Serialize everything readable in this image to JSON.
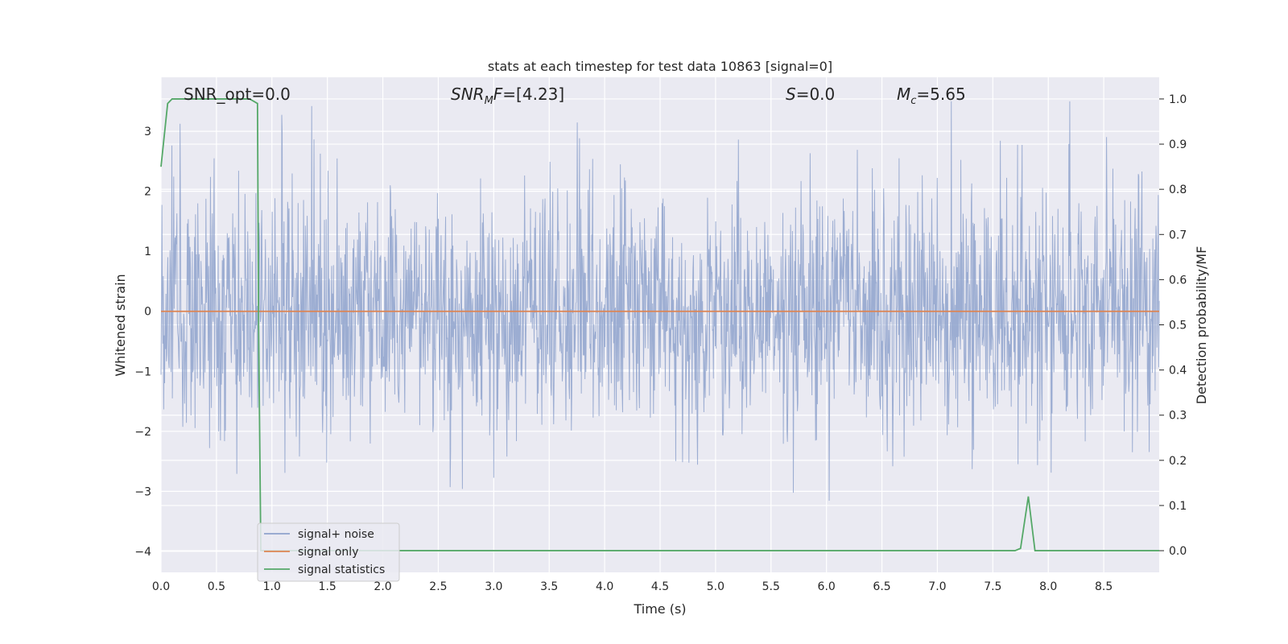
{
  "chart_data": {
    "type": "line",
    "title": "stats at each timestep for test data 10863 [signal=0]",
    "xlabel": "Time (s)",
    "ylabel": "Whitened strain",
    "ylabel_right": "Detection probability/MF",
    "xlim": [
      0.0,
      9.0
    ],
    "ylim": [
      -4.35,
      3.9
    ],
    "ylim_right": [
      -0.048,
      1.048
    ],
    "x_ticks": [
      "0.0",
      "0.5",
      "1.0",
      "1.5",
      "2.0",
      "2.5",
      "3.0",
      "3.5",
      "4.0",
      "4.5",
      "5.0",
      "5.5",
      "6.0",
      "6.5",
      "7.0",
      "7.5",
      "8.0",
      "8.5"
    ],
    "y_ticks": [
      "3",
      "2",
      "1",
      "0",
      "−1",
      "−2",
      "−3",
      "−4"
    ],
    "y_ticks_right": [
      "1.0",
      "0.9",
      "0.8",
      "0.7",
      "0.6",
      "0.5",
      "0.4",
      "0.3",
      "0.2",
      "0.1",
      "0.0"
    ],
    "grid": true,
    "annotations": [
      {
        "id": "snr-opt",
        "text": "SNR_opt=0.0",
        "x": 0.2,
        "y": 3.55
      },
      {
        "id": "snr-mf",
        "text": "=[4.23]",
        "x": 2.6,
        "y": 3.55
      },
      {
        "id": "s-stat",
        "text": "=0.0",
        "x": 5.6,
        "y": 3.55
      },
      {
        "id": "mc",
        "text": "=5.65",
        "x": 6.6,
        "y": 3.55
      }
    ],
    "legend": {
      "placement": "lower-left",
      "entries": [
        "signal+ noise",
        "signal only",
        "signal statistics"
      ]
    },
    "series": [
      {
        "name": "signal+ noise",
        "axis": "left",
        "color": "#8ea2cc",
        "kind": "noise",
        "n_samples": 2200,
        "envelope_typical": [
          -1.6,
          1.8
        ],
        "min": -3.8,
        "max": 3.5
      },
      {
        "name": "signal only",
        "axis": "left",
        "color": "#dd8452",
        "x": [
          0.0,
          9.0
        ],
        "y": [
          0.0,
          0.0
        ]
      },
      {
        "name": "signal statistics",
        "axis": "right",
        "color": "#55a868",
        "x": [
          0.0,
          0.06,
          0.1,
          0.2,
          0.3,
          0.4,
          0.5,
          0.6,
          0.7,
          0.8,
          0.87,
          0.88,
          0.9,
          0.95,
          1.0,
          7.7,
          7.75,
          7.82,
          7.88,
          7.95,
          9.0
        ],
        "y": [
          0.85,
          0.99,
          1.0,
          1.0,
          1.0,
          1.0,
          1.0,
          1.0,
          1.0,
          1.0,
          0.99,
          0.5,
          0.0,
          0.0,
          0.0,
          0.0,
          0.005,
          0.12,
          0.0,
          0.0,
          0.0
        ]
      }
    ]
  }
}
